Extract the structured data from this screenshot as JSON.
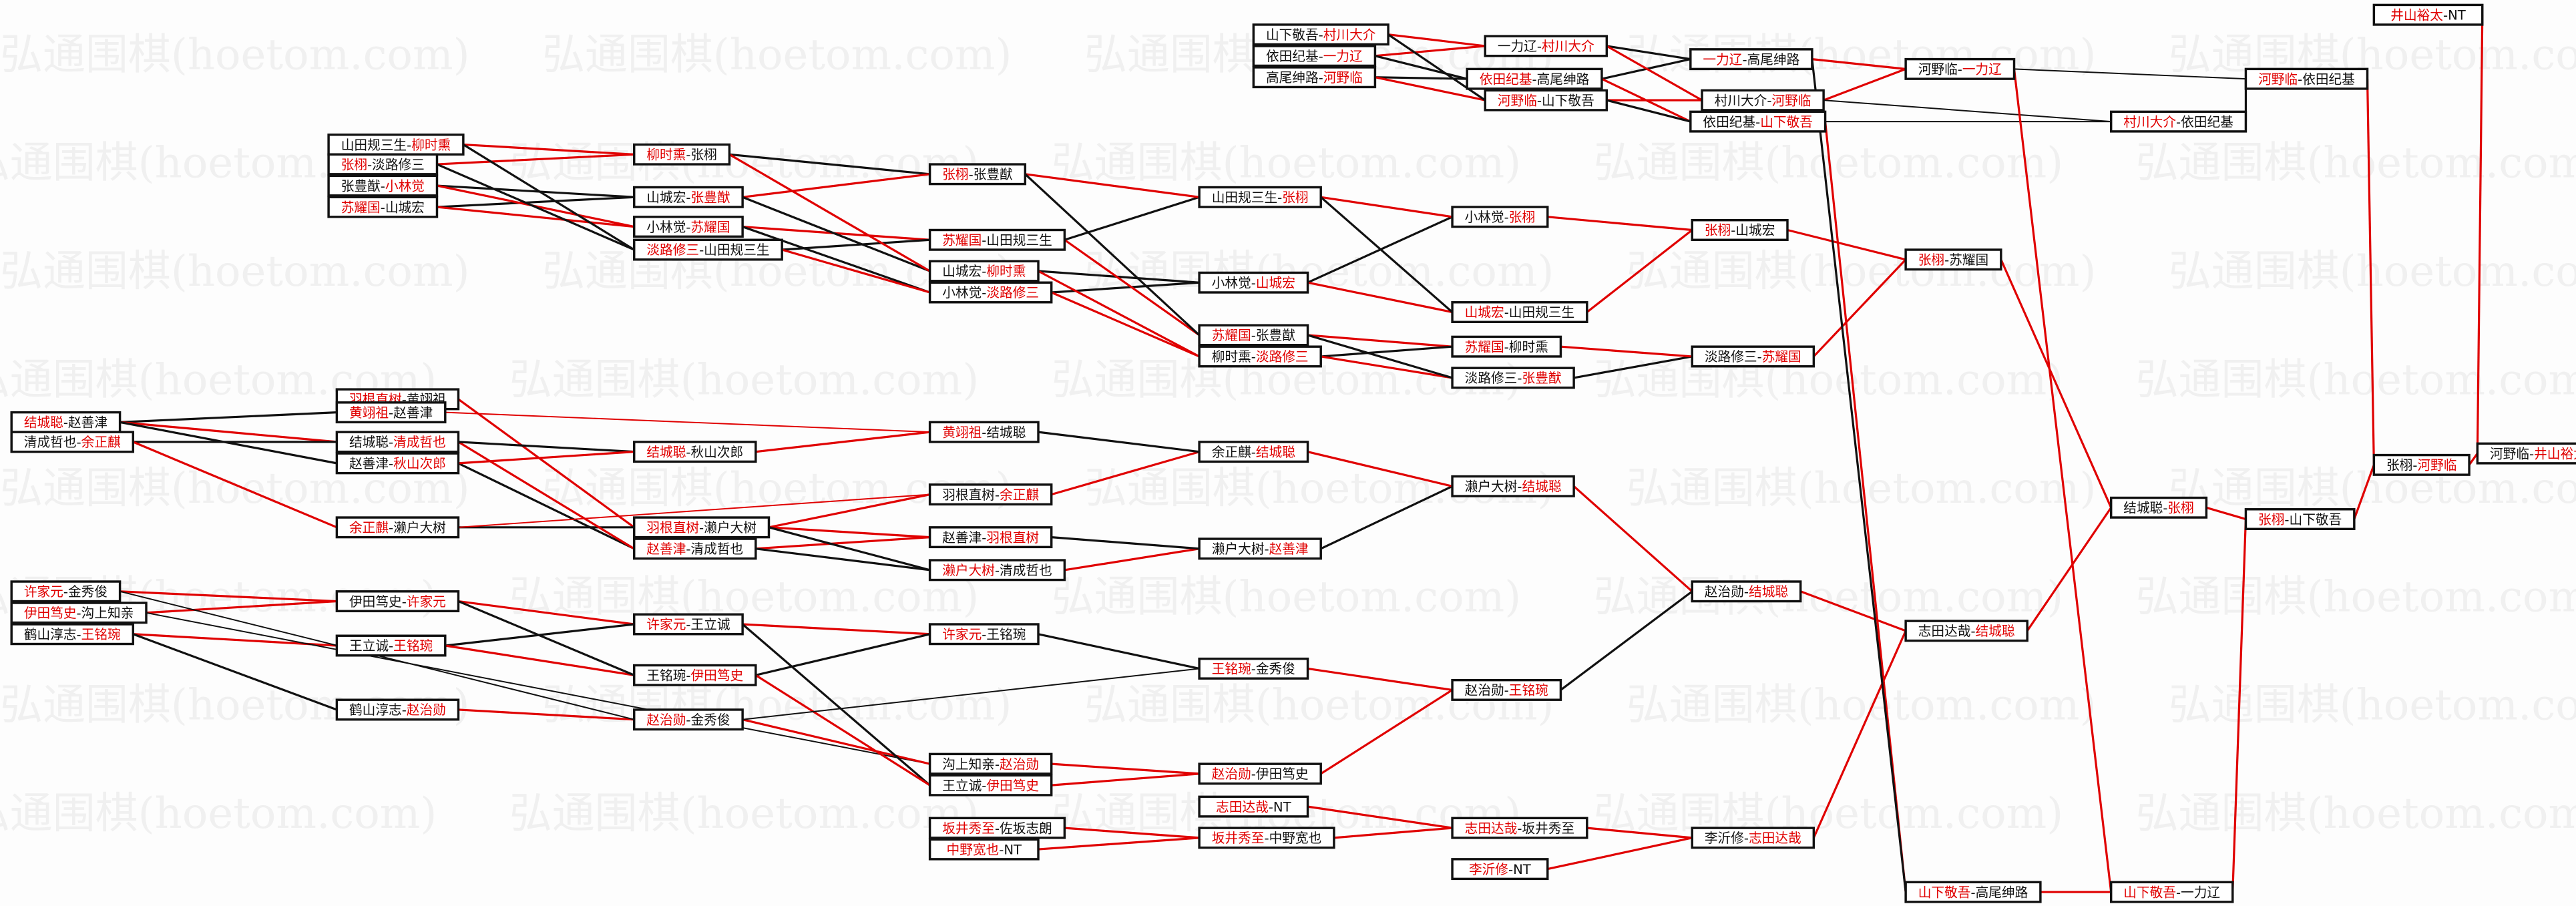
{
  "watermark": "弘通围棋(hoetom.com)",
  "colors": {
    "winner": "#e00000",
    "loser": "#111111",
    "box_border": "#111111"
  },
  "separator": "-",
  "matches": [
    {
      "p": [
        "山田规三生",
        "柳时熏"
      ],
      "w": 1
    },
    {
      "p": [
        "张栩",
        "淡路修三"
      ],
      "w": 0
    },
    {
      "p": [
        "张豊猷",
        "小林觉"
      ],
      "w": 1
    },
    {
      "p": [
        "苏耀国",
        "山城宏"
      ],
      "w": 0
    },
    {
      "p": [
        "柳时熏",
        "张栩"
      ],
      "w": 0
    },
    {
      "p": [
        "山城宏",
        "张豊猷"
      ],
      "w": 1
    },
    {
      "p": [
        "小林觉",
        "苏耀国"
      ],
      "w": 1
    },
    {
      "p": [
        "淡路修三",
        "山田规三生"
      ],
      "w": 0
    },
    {
      "p": [
        "张栩",
        "张豊猷"
      ],
      "w": 0
    },
    {
      "p": [
        "苏耀国",
        "山田规三生"
      ],
      "w": 0
    },
    {
      "p": [
        "山城宏",
        "柳时熏"
      ],
      "w": 1
    },
    {
      "p": [
        "小林觉",
        "淡路修三"
      ],
      "w": 1
    },
    {
      "p": [
        "山田规三生",
        "张栩"
      ],
      "w": 1
    },
    {
      "p": [
        "小林觉",
        "山城宏"
      ],
      "w": 1
    },
    {
      "p": [
        "苏耀国",
        "张豊猷"
      ],
      "w": 0
    },
    {
      "p": [
        "柳时熏",
        "淡路修三"
      ],
      "w": 1
    },
    {
      "p": [
        "小林觉",
        "张栩"
      ],
      "w": 1
    },
    {
      "p": [
        "山城宏",
        "山田规三生"
      ],
      "w": 0
    },
    {
      "p": [
        "苏耀国",
        "柳时熏"
      ],
      "w": 0
    },
    {
      "p": [
        "淡路修三",
        "张豊猷"
      ],
      "w": 1
    },
    {
      "p": [
        "张栩",
        "山城宏"
      ],
      "w": 0
    },
    {
      "p": [
        "淡路修三",
        "苏耀国"
      ],
      "w": 1
    },
    {
      "p": [
        "张栩",
        "苏耀国"
      ],
      "w": 0
    },
    {
      "p": [
        "山下敬吾",
        "村川大介"
      ],
      "w": 1
    },
    {
      "p": [
        "依田纪基",
        "一力辽"
      ],
      "w": 1
    },
    {
      "p": [
        "高尾绅路",
        "河野临"
      ],
      "w": 1
    },
    {
      "p": [
        "一力辽",
        "村川大介"
      ],
      "w": 1
    },
    {
      "p": [
        "依田纪基",
        "高尾绅路"
      ],
      "w": 0
    },
    {
      "p": [
        "河野临",
        "山下敬吾"
      ],
      "w": 0
    },
    {
      "p": [
        "一力辽",
        "高尾绅路"
      ],
      "w": 0
    },
    {
      "p": [
        "村川大介",
        "河野临"
      ],
      "w": 1
    },
    {
      "p": [
        "依田纪基",
        "山下敬吾"
      ],
      "w": 1
    },
    {
      "p": [
        "河野临",
        "一力辽"
      ],
      "w": 1
    },
    {
      "p": [
        "村川大介",
        "依田纪基"
      ],
      "w": 0
    },
    {
      "p": [
        "河野临",
        "依田纪基"
      ],
      "w": 0
    },
    {
      "p": [
        "井山裕太",
        "NT"
      ],
      "w": 0
    },
    {
      "p": [
        "结城聪",
        "张栩"
      ],
      "w": 1
    },
    {
      "p": [
        "张栩",
        "山下敬吾"
      ],
      "w": 0
    },
    {
      "p": [
        "张栩",
        "河野临"
      ],
      "w": 1
    },
    {
      "p": [
        "河野临",
        "井山裕太"
      ],
      "w": 1
    },
    {
      "p": [
        "志田达哉",
        "结城聪"
      ],
      "w": 1
    },
    {
      "p": [
        "山下敬吾",
        "高尾绅路"
      ],
      "w": 0
    },
    {
      "p": [
        "山下敬吾",
        "一力辽"
      ],
      "w": 0
    },
    {
      "p": [
        "结城聪",
        "赵善津"
      ],
      "w": 0
    },
    {
      "p": [
        "清成哲也",
        "余正麒"
      ],
      "w": 1
    },
    {
      "p": [
        "羽根直树",
        "黄翊祖"
      ],
      "w": 0
    },
    {
      "p": [
        "黄翊祖",
        "赵善津"
      ],
      "w": 0
    },
    {
      "p": [
        "结城聪",
        "清成哲也"
      ],
      "w": 1
    },
    {
      "p": [
        "赵善津",
        "秋山次郎"
      ],
      "w": 1
    },
    {
      "p": [
        "余正麒",
        "濑户大树"
      ],
      "w": 0
    },
    {
      "p": [
        "羽根直树",
        "濑户大树"
      ],
      "w": 0
    },
    {
      "p": [
        "赵善津",
        "清成哲也"
      ],
      "w": 0
    },
    {
      "p": [
        "结城聪",
        "秋山次郎"
      ],
      "w": 0
    },
    {
      "p": [
        "黄翊祖",
        "结城聪"
      ],
      "w": 0
    },
    {
      "p": [
        "羽根直树",
        "余正麒"
      ],
      "w": 1
    },
    {
      "p": [
        "赵善津",
        "羽根直树"
      ],
      "w": 1
    },
    {
      "p": [
        "濑户大树",
        "清成哲也"
      ],
      "w": 0
    },
    {
      "p": [
        "余正麒",
        "结城聪"
      ],
      "w": 1
    },
    {
      "p": [
        "濑户大树",
        "赵善津"
      ],
      "w": 1
    },
    {
      "p": [
        "濑户大树",
        "结城聪"
      ],
      "w": 1
    },
    {
      "p": [
        "赵治勋",
        "结城聪"
      ],
      "w": 1
    },
    {
      "p": [
        "许家元",
        "金秀俊"
      ],
      "w": 0
    },
    {
      "p": [
        "伊田笃史",
        "沟上知亲"
      ],
      "w": 0
    },
    {
      "p": [
        "鹤山淳志",
        "王铭琬"
      ],
      "w": 1
    },
    {
      "p": [
        "伊田笃史",
        "许家元"
      ],
      "w": 1
    },
    {
      "p": [
        "王立诚",
        "王铭琬"
      ],
      "w": 1
    },
    {
      "p": [
        "鹤山淳志",
        "赵治勋"
      ],
      "w": 1
    },
    {
      "p": [
        "许家元",
        "王立诚"
      ],
      "w": 0
    },
    {
      "p": [
        "王铭琬",
        "伊田笃史"
      ],
      "w": 1
    },
    {
      "p": [
        "赵治勋",
        "金秀俊"
      ],
      "w": 0
    },
    {
      "p": [
        "许家元",
        "王铭琬"
      ],
      "w": 0
    },
    {
      "p": [
        "沟上知亲",
        "赵治勋"
      ],
      "w": 1
    },
    {
      "p": [
        "王立诚",
        "伊田笃史"
      ],
      "w": 1
    },
    {
      "p": [
        "王铭琬",
        "金秀俊"
      ],
      "w": 0
    },
    {
      "p": [
        "赵治勋",
        "伊田笃史"
      ],
      "w": 0
    },
    {
      "p": [
        "赵治勋",
        "王铭琬"
      ],
      "w": 1
    },
    {
      "p": [
        "志田达哉",
        "NT"
      ],
      "w": 0
    },
    {
      "p": [
        "坂井秀至",
        "佐坂志朗"
      ],
      "w": 0
    },
    {
      "p": [
        "中野宽也",
        "NT"
      ],
      "w": 0
    },
    {
      "p": [
        "坂井秀至",
        "中野宽也"
      ],
      "w": 0
    },
    {
      "p": [
        "志田达哉",
        "坂井秀至"
      ],
      "w": 0
    },
    {
      "p": [
        "李沂修",
        "NT"
      ],
      "w": 0
    },
    {
      "p": [
        "李沂修",
        "志田达哉"
      ],
      "w": 1
    }
  ]
}
